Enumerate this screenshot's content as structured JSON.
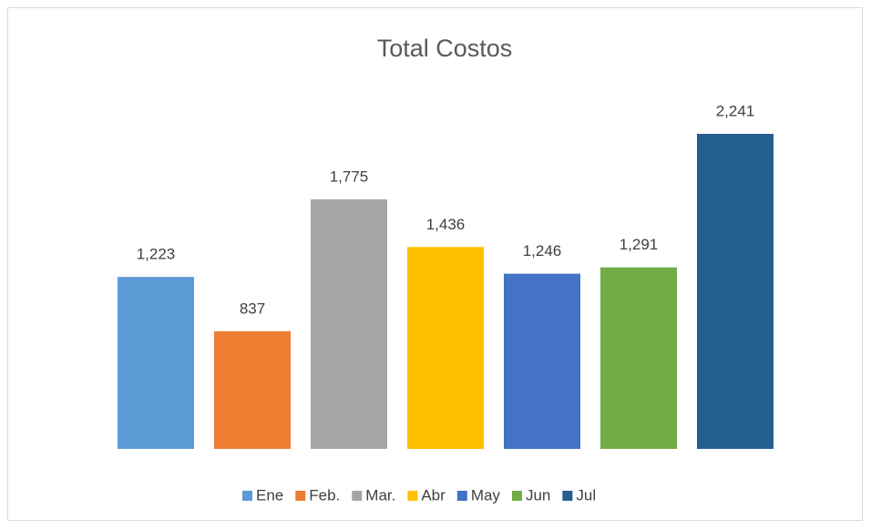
{
  "chart_data": {
    "type": "bar",
    "title": "Total Costos",
    "series": [
      {
        "name": "Ene",
        "color": "#5b9bd5",
        "values": [
          1223
        ],
        "value_labels": [
          "1,223"
        ]
      },
      {
        "name": "Feb.",
        "color": "#ed7d31",
        "values": [
          837
        ],
        "value_labels": [
          "837"
        ]
      },
      {
        "name": "Mar.",
        "color": "#a5a5a5",
        "values": [
          1775
        ],
        "value_labels": [
          "1,775"
        ]
      },
      {
        "name": "Abr",
        "color": "#ffc000",
        "values": [
          1436
        ],
        "value_labels": [
          "1,436"
        ]
      },
      {
        "name": "May",
        "color": "#4472c4",
        "values": [
          1246
        ],
        "value_labels": [
          "1,246"
        ]
      },
      {
        "name": "Jun",
        "color": "#70ad47",
        "values": [
          1291
        ],
        "value_labels": [
          "1,291"
        ]
      },
      {
        "name": "Jul",
        "color": "#255e91",
        "values": [
          2241
        ],
        "value_labels": [
          "2,241"
        ]
      }
    ],
    "ylim": [
      0,
      2500
    ],
    "legend": "bottom"
  }
}
